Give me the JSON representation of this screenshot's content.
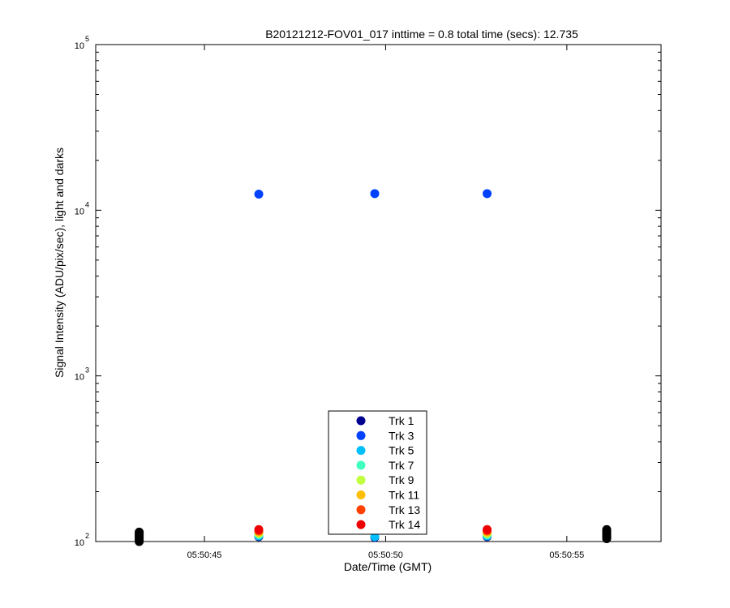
{
  "chart_data": {
    "type": "scatter",
    "title": "B20121212-FOV01_017 inttime = 0.8 total time (secs): 12.735",
    "xlabel": "Date/Time (GMT)",
    "ylabel": "Signal Intensity (ADU/pix/sec), light and darks",
    "y_scale": "log",
    "ylim": [
      100,
      100000
    ],
    "xlim": [
      "05:50:42",
      "05:50:57.6"
    ],
    "x_ticks": [
      "05:50:45",
      "05:50:50",
      "05:50:55"
    ],
    "y_ticks": [
      {
        "base": "10",
        "exp": "2",
        "value": 100
      },
      {
        "base": "10",
        "exp": "3",
        "value": 1000
      },
      {
        "base": "10",
        "exp": "4",
        "value": 10000
      },
      {
        "base": "10",
        "exp": "5",
        "value": 100000
      }
    ],
    "grid": false,
    "legend_position": "bottom-center",
    "series": [
      {
        "name": "Trk 1",
        "color": "#00008F",
        "points": [
          [
            "05:50:46.5",
            107
          ],
          [
            "05:50:49.7",
            106
          ],
          [
            "05:50:52.8",
            107
          ]
        ]
      },
      {
        "name": "Trk 3",
        "color": "#0040FF",
        "points": [
          [
            "05:50:46.5",
            12500
          ],
          [
            "05:50:49.7",
            12600
          ],
          [
            "05:50:52.8",
            12600
          ]
        ]
      },
      {
        "name": "Trk 5",
        "color": "#00BFFF",
        "points": [
          [
            "05:50:46.5",
            108
          ],
          [
            "05:50:49.7",
            107
          ],
          [
            "05:50:52.8",
            108
          ]
        ]
      },
      {
        "name": "Trk 7",
        "color": "#40FFBF",
        "points": [
          [
            "05:50:46.5",
            110
          ],
          [
            "05:50:52.8",
            110
          ]
        ]
      },
      {
        "name": "Trk 9",
        "color": "#BFFF40",
        "points": [
          [
            "05:50:46.5",
            112
          ],
          [
            "05:50:52.8",
            112
          ]
        ]
      },
      {
        "name": "Trk 11",
        "color": "#FFBF00",
        "points": [
          [
            "05:50:46.5",
            114
          ],
          [
            "05:50:52.8",
            114
          ]
        ]
      },
      {
        "name": "Trk 13",
        "color": "#FF4000",
        "points": [
          [
            "05:50:46.5",
            116
          ],
          [
            "05:50:52.8",
            116
          ]
        ]
      },
      {
        "name": "Trk 14",
        "color": "#EE0000",
        "points": [
          [
            "05:50:46.5",
            118
          ],
          [
            "05:50:52.8",
            118
          ]
        ]
      }
    ],
    "darks": {
      "color": "#000000",
      "points": [
        [
          "05:50:43.2",
          100
        ],
        [
          "05:50:43.2",
          102
        ],
        [
          "05:50:43.2",
          104
        ],
        [
          "05:50:43.2",
          106
        ],
        [
          "05:50:43.2",
          108
        ],
        [
          "05:50:43.2",
          110
        ],
        [
          "05:50:43.2",
          112
        ],
        [
          "05:50:43.2",
          114
        ],
        [
          "05:50:56.1",
          104
        ],
        [
          "05:50:56.1",
          106
        ],
        [
          "05:50:56.1",
          108
        ],
        [
          "05:50:56.1",
          110
        ],
        [
          "05:50:56.1",
          112
        ],
        [
          "05:50:56.1",
          114
        ],
        [
          "05:50:56.1",
          116
        ],
        [
          "05:50:56.1",
          118
        ]
      ]
    }
  }
}
